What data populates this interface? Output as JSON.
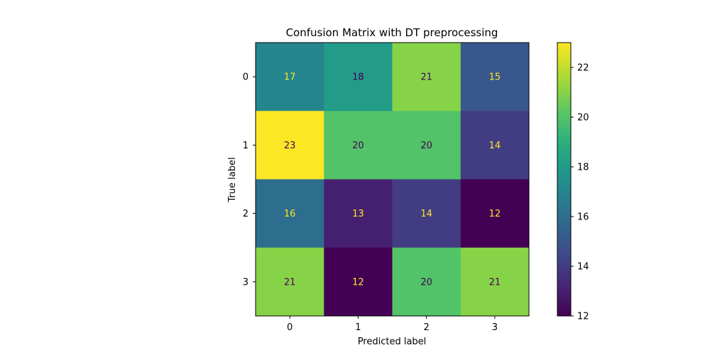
{
  "chart_data": {
    "type": "heatmap",
    "title": "Confusion Matrix with DT preprocessing",
    "xlabel": "Predicted label",
    "ylabel": "True label",
    "x_categories": [
      "0",
      "1",
      "2",
      "3"
    ],
    "y_categories": [
      "0",
      "1",
      "2",
      "3"
    ],
    "values": [
      [
        17,
        18,
        21,
        15
      ],
      [
        23,
        20,
        20,
        14
      ],
      [
        16,
        13,
        14,
        12
      ],
      [
        21,
        12,
        20,
        21
      ]
    ],
    "colormap": "viridis",
    "colorbar": {
      "range": [
        12,
        23
      ],
      "ticks": [
        "12",
        "14",
        "16",
        "18",
        "20",
        "22"
      ]
    },
    "annotation_colors": {
      "on_dark": "#fde725",
      "on_light": "#440154"
    },
    "grid": false
  }
}
